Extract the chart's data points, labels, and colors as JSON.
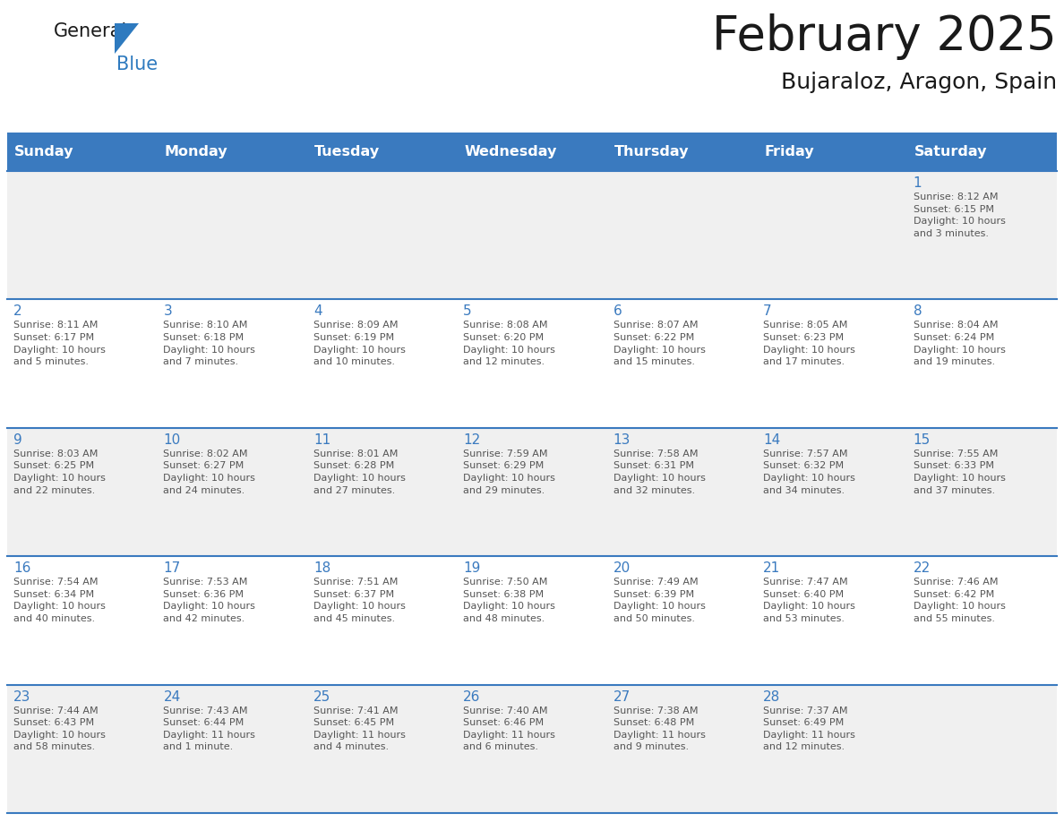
{
  "title": "February 2025",
  "subtitle": "Bujaraloz, Aragon, Spain",
  "header_bg": "#3a7abf",
  "header_text_color": "#ffffff",
  "cell_bg_row0": "#f0f0f0",
  "cell_bg_row1": "#ffffff",
  "cell_bg_row2": "#f0f0f0",
  "cell_bg_row3": "#ffffff",
  "cell_bg_row4": "#f0f0f0",
  "grid_line_color": "#3a7abf",
  "day_number_color": "#3a7abf",
  "info_text_color": "#555555",
  "day_headers": [
    "Sunday",
    "Monday",
    "Tuesday",
    "Wednesday",
    "Thursday",
    "Friday",
    "Saturday"
  ],
  "weeks": [
    [
      {
        "day": null,
        "info": ""
      },
      {
        "day": null,
        "info": ""
      },
      {
        "day": null,
        "info": ""
      },
      {
        "day": null,
        "info": ""
      },
      {
        "day": null,
        "info": ""
      },
      {
        "day": null,
        "info": ""
      },
      {
        "day": 1,
        "info": "Sunrise: 8:12 AM\nSunset: 6:15 PM\nDaylight: 10 hours\nand 3 minutes."
      }
    ],
    [
      {
        "day": 2,
        "info": "Sunrise: 8:11 AM\nSunset: 6:17 PM\nDaylight: 10 hours\nand 5 minutes."
      },
      {
        "day": 3,
        "info": "Sunrise: 8:10 AM\nSunset: 6:18 PM\nDaylight: 10 hours\nand 7 minutes."
      },
      {
        "day": 4,
        "info": "Sunrise: 8:09 AM\nSunset: 6:19 PM\nDaylight: 10 hours\nand 10 minutes."
      },
      {
        "day": 5,
        "info": "Sunrise: 8:08 AM\nSunset: 6:20 PM\nDaylight: 10 hours\nand 12 minutes."
      },
      {
        "day": 6,
        "info": "Sunrise: 8:07 AM\nSunset: 6:22 PM\nDaylight: 10 hours\nand 15 minutes."
      },
      {
        "day": 7,
        "info": "Sunrise: 8:05 AM\nSunset: 6:23 PM\nDaylight: 10 hours\nand 17 minutes."
      },
      {
        "day": 8,
        "info": "Sunrise: 8:04 AM\nSunset: 6:24 PM\nDaylight: 10 hours\nand 19 minutes."
      }
    ],
    [
      {
        "day": 9,
        "info": "Sunrise: 8:03 AM\nSunset: 6:25 PM\nDaylight: 10 hours\nand 22 minutes."
      },
      {
        "day": 10,
        "info": "Sunrise: 8:02 AM\nSunset: 6:27 PM\nDaylight: 10 hours\nand 24 minutes."
      },
      {
        "day": 11,
        "info": "Sunrise: 8:01 AM\nSunset: 6:28 PM\nDaylight: 10 hours\nand 27 minutes."
      },
      {
        "day": 12,
        "info": "Sunrise: 7:59 AM\nSunset: 6:29 PM\nDaylight: 10 hours\nand 29 minutes."
      },
      {
        "day": 13,
        "info": "Sunrise: 7:58 AM\nSunset: 6:31 PM\nDaylight: 10 hours\nand 32 minutes."
      },
      {
        "day": 14,
        "info": "Sunrise: 7:57 AM\nSunset: 6:32 PM\nDaylight: 10 hours\nand 34 minutes."
      },
      {
        "day": 15,
        "info": "Sunrise: 7:55 AM\nSunset: 6:33 PM\nDaylight: 10 hours\nand 37 minutes."
      }
    ],
    [
      {
        "day": 16,
        "info": "Sunrise: 7:54 AM\nSunset: 6:34 PM\nDaylight: 10 hours\nand 40 minutes."
      },
      {
        "day": 17,
        "info": "Sunrise: 7:53 AM\nSunset: 6:36 PM\nDaylight: 10 hours\nand 42 minutes."
      },
      {
        "day": 18,
        "info": "Sunrise: 7:51 AM\nSunset: 6:37 PM\nDaylight: 10 hours\nand 45 minutes."
      },
      {
        "day": 19,
        "info": "Sunrise: 7:50 AM\nSunset: 6:38 PM\nDaylight: 10 hours\nand 48 minutes."
      },
      {
        "day": 20,
        "info": "Sunrise: 7:49 AM\nSunset: 6:39 PM\nDaylight: 10 hours\nand 50 minutes."
      },
      {
        "day": 21,
        "info": "Sunrise: 7:47 AM\nSunset: 6:40 PM\nDaylight: 10 hours\nand 53 minutes."
      },
      {
        "day": 22,
        "info": "Sunrise: 7:46 AM\nSunset: 6:42 PM\nDaylight: 10 hours\nand 55 minutes."
      }
    ],
    [
      {
        "day": 23,
        "info": "Sunrise: 7:44 AM\nSunset: 6:43 PM\nDaylight: 10 hours\nand 58 minutes."
      },
      {
        "day": 24,
        "info": "Sunrise: 7:43 AM\nSunset: 6:44 PM\nDaylight: 11 hours\nand 1 minute."
      },
      {
        "day": 25,
        "info": "Sunrise: 7:41 AM\nSunset: 6:45 PM\nDaylight: 11 hours\nand 4 minutes."
      },
      {
        "day": 26,
        "info": "Sunrise: 7:40 AM\nSunset: 6:46 PM\nDaylight: 11 hours\nand 6 minutes."
      },
      {
        "day": 27,
        "info": "Sunrise: 7:38 AM\nSunset: 6:48 PM\nDaylight: 11 hours\nand 9 minutes."
      },
      {
        "day": 28,
        "info": "Sunrise: 7:37 AM\nSunset: 6:49 PM\nDaylight: 11 hours\nand 12 minutes."
      },
      {
        "day": null,
        "info": ""
      }
    ]
  ]
}
